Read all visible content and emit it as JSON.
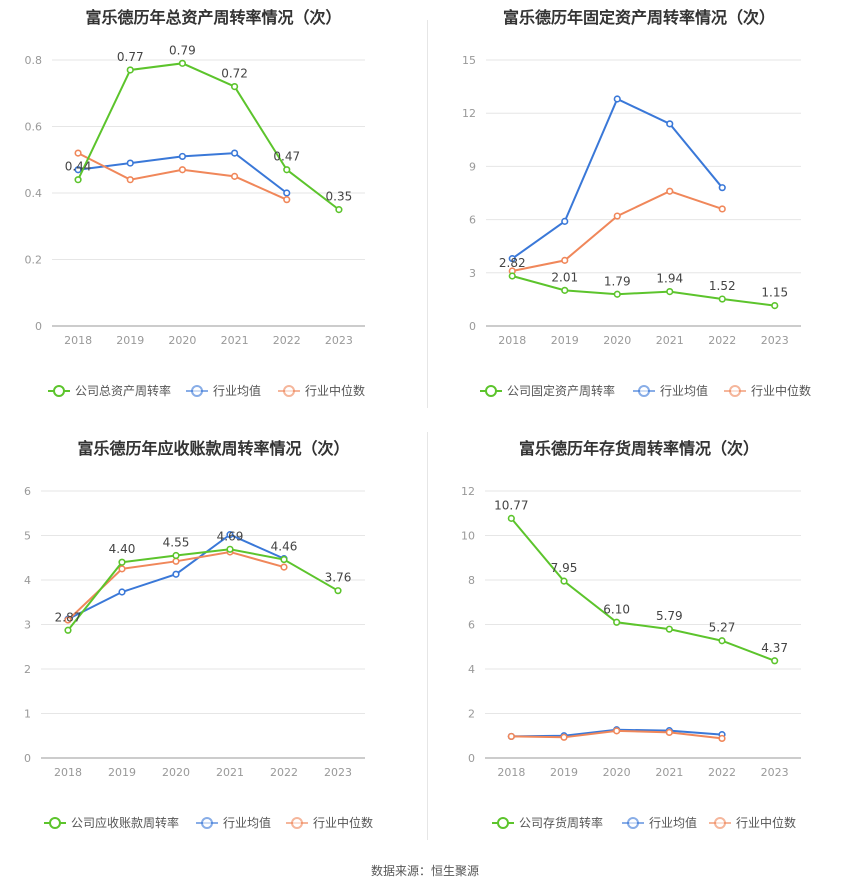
{
  "source_note": "数据来源：恒生聚源",
  "colors": {
    "company": "#5cc42c",
    "average": "#3a78d8",
    "median": "#f0875a",
    "grid": "#e6e6e6",
    "axis": "#999999"
  },
  "chart_data": [
    {
      "type": "line",
      "title": "富乐德历年总资产周转率情况（次）",
      "categories": [
        "2018",
        "2019",
        "2020",
        "2021",
        "2022",
        "2023"
      ],
      "ylim": [
        0,
        0.8
      ],
      "yticks": [
        0,
        0.2,
        0.4,
        0.6,
        0.8
      ],
      "ytick_labels": [
        "0",
        "0.2",
        "0.4",
        "0.6",
        "0.8"
      ],
      "series": [
        {
          "name": "公司总资产周转率",
          "key": "company",
          "values": [
            0.44,
            0.77,
            0.79,
            0.72,
            0.47,
            0.35
          ],
          "labels": [
            "0.44",
            "0.77",
            "0.79",
            "0.72",
            "0.47",
            "0.35"
          ]
        },
        {
          "name": "行业均值",
          "key": "average",
          "values": [
            0.47,
            0.49,
            0.51,
            0.52,
            0.4,
            null
          ]
        },
        {
          "name": "行业中位数",
          "key": "median",
          "values": [
            0.52,
            0.44,
            0.47,
            0.45,
            0.38,
            null
          ]
        }
      ]
    },
    {
      "type": "line",
      "title": "富乐德历年固定资产周转率情况（次）",
      "categories": [
        "2018",
        "2019",
        "2020",
        "2021",
        "2022",
        "2023"
      ],
      "ylim": [
        0,
        15
      ],
      "yticks": [
        0,
        3,
        6,
        9,
        12,
        15
      ],
      "ytick_labels": [
        "0",
        "3",
        "6",
        "9",
        "12",
        "15"
      ],
      "series": [
        {
          "name": "公司固定资产周转率",
          "key": "company",
          "values": [
            2.82,
            2.01,
            1.79,
            1.94,
            1.52,
            1.15
          ],
          "labels": [
            "2.82",
            "2.01",
            "1.79",
            "1.94",
            "1.52",
            "1.15"
          ]
        },
        {
          "name": "行业均值",
          "key": "average",
          "values": [
            3.8,
            5.9,
            12.8,
            11.4,
            7.8,
            null
          ]
        },
        {
          "name": "行业中位数",
          "key": "median",
          "values": [
            3.1,
            3.7,
            6.2,
            7.6,
            6.6,
            null
          ]
        }
      ]
    },
    {
      "type": "line",
      "title": "富乐德历年应收账款周转率情况（次）",
      "categories": [
        "2018",
        "2019",
        "2020",
        "2021",
        "2022",
        "2023"
      ],
      "ylim": [
        0,
        6
      ],
      "yticks": [
        0,
        1,
        2,
        3,
        4,
        5,
        6
      ],
      "ytick_labels": [
        "0",
        "1",
        "2",
        "3",
        "4",
        "5",
        "6"
      ],
      "series": [
        {
          "name": "公司应收账款周转率",
          "key": "company",
          "values": [
            2.87,
            4.4,
            4.55,
            4.69,
            4.46,
            3.76
          ],
          "labels": [
            "2.87",
            "4.40",
            "4.55",
            "4.69",
            "4.46",
            "3.76"
          ]
        },
        {
          "name": "行业均值",
          "key": "average",
          "values": [
            3.12,
            3.73,
            4.13,
            5.02,
            4.48,
            null
          ]
        },
        {
          "name": "行业中位数",
          "key": "median",
          "values": [
            3.1,
            4.25,
            4.42,
            4.63,
            4.29,
            null
          ]
        }
      ]
    },
    {
      "type": "line",
      "title": "富乐德历年存货周转率情况（次）",
      "categories": [
        "2018",
        "2019",
        "2020",
        "2021",
        "2022",
        "2023"
      ],
      "ylim": [
        0,
        12
      ],
      "yticks": [
        0,
        2,
        4,
        6,
        8,
        10,
        12
      ],
      "ytick_labels": [
        "0",
        "2",
        "4",
        "6",
        "8",
        "10",
        "12"
      ],
      "series": [
        {
          "name": "公司存货周转率",
          "key": "company",
          "values": [
            10.77,
            7.95,
            6.1,
            5.79,
            5.27,
            4.37
          ],
          "labels": [
            "10.77",
            "7.95",
            "6.10",
            "5.79",
            "5.27",
            "4.37"
          ]
        },
        {
          "name": "行业均值",
          "key": "average",
          "values": [
            0.97,
            1.0,
            1.27,
            1.23,
            1.05,
            null
          ]
        },
        {
          "name": "行业中位数",
          "key": "median",
          "values": [
            0.97,
            0.93,
            1.22,
            1.15,
            0.88,
            null
          ]
        }
      ]
    }
  ]
}
